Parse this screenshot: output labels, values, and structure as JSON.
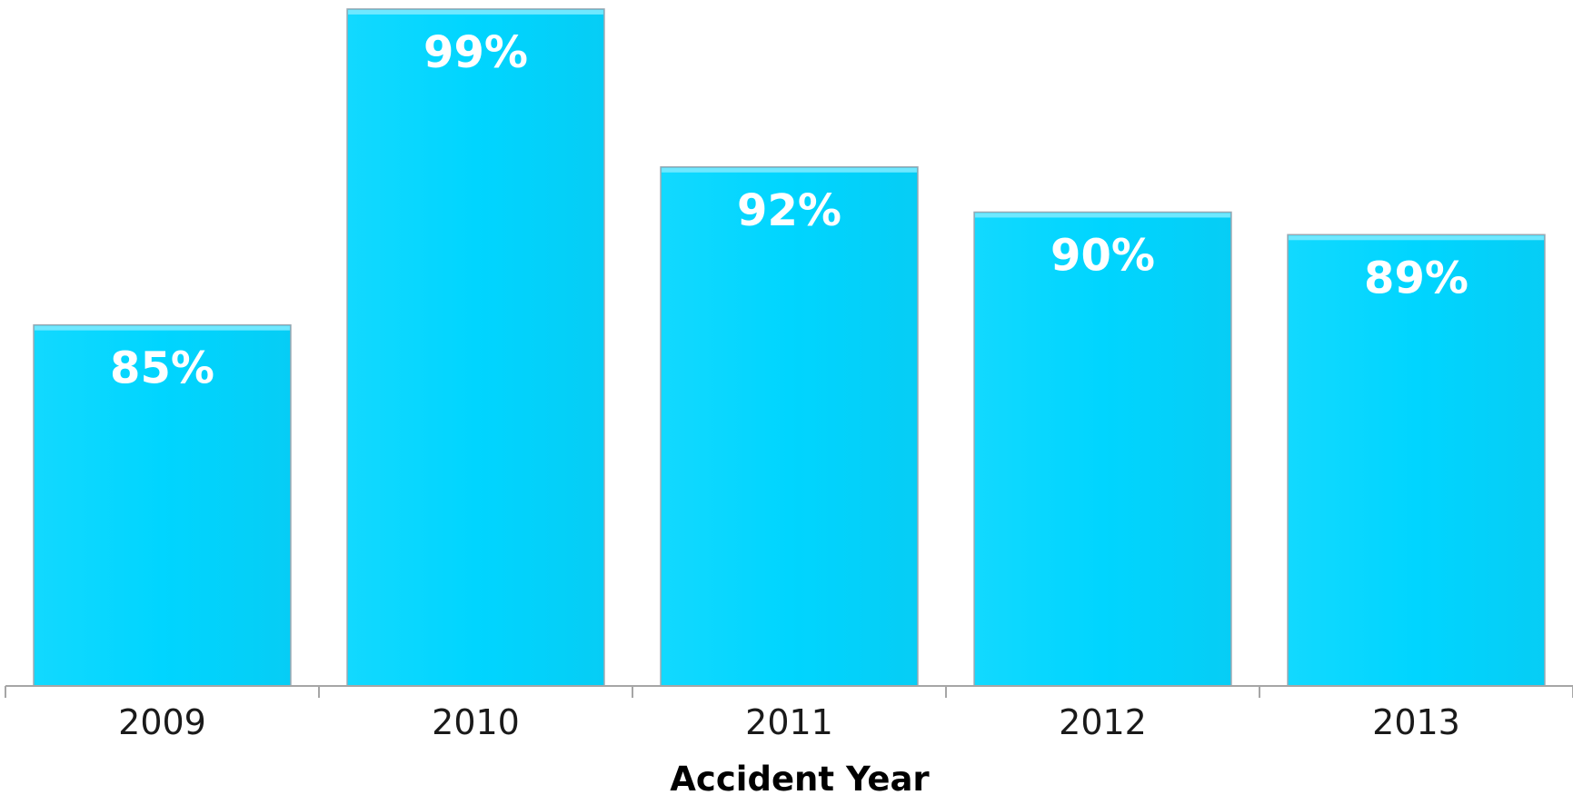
{
  "chart_data": {
    "type": "bar",
    "categories": [
      "2009",
      "2010",
      "2011",
      "2012",
      "2013"
    ],
    "values": [
      85,
      99,
      92,
      90,
      89
    ],
    "data_labels": [
      "85%",
      "99%",
      "92%",
      "90%",
      "89%"
    ],
    "title": "",
    "xlabel": "Accident Year",
    "ylabel": "",
    "ylim": [
      69,
      99.4
    ],
    "grid": false,
    "legend": "none",
    "bar_color": "#00d5ff"
  }
}
